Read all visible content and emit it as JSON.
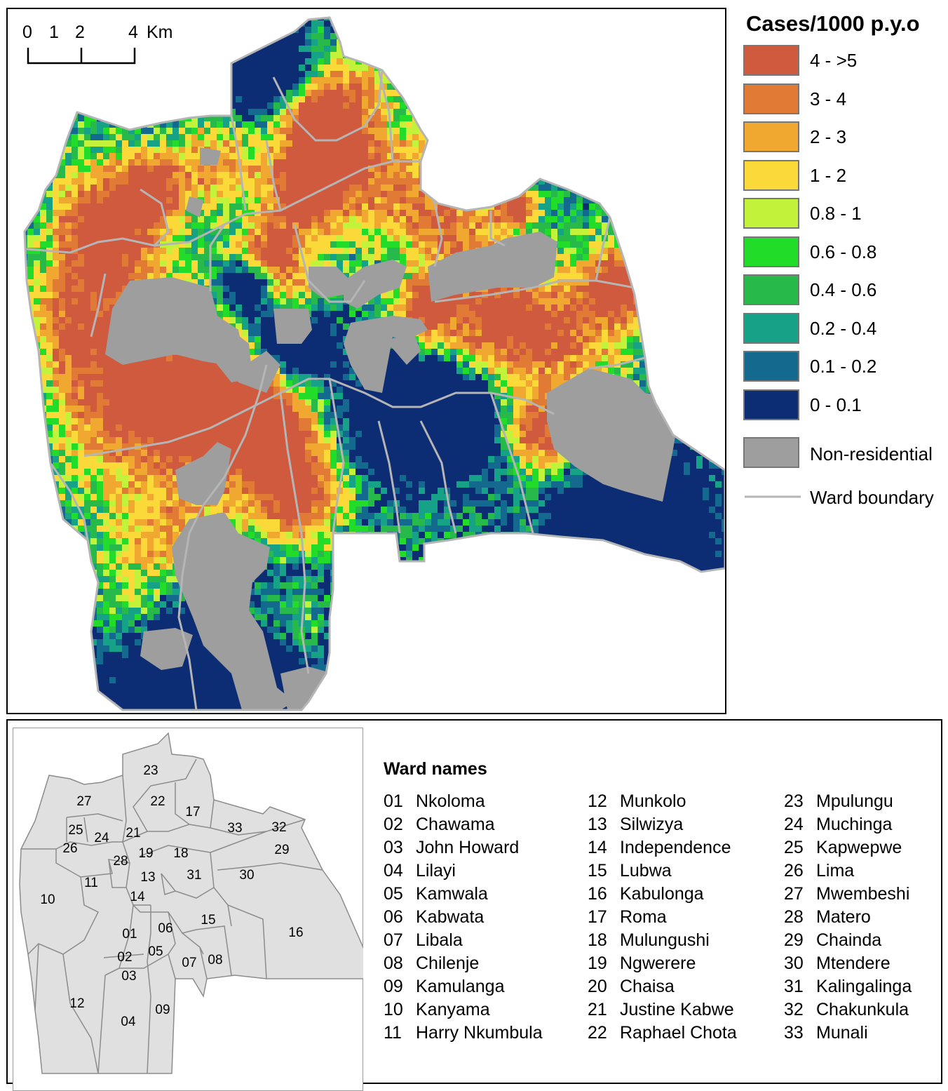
{
  "legend": {
    "title": "Cases/1000 p.y.o",
    "classes": [
      {
        "label": "4 - >5",
        "color": "#cf5a3e"
      },
      {
        "label": "3 - 4",
        "color": "#e07a34"
      },
      {
        "label": "2 - 3",
        "color": "#f0a830"
      },
      {
        "label": "1 - 2",
        "color": "#fbd938"
      },
      {
        "label": "0.8 - 1",
        "color": "#c2f23a"
      },
      {
        "label": "0.6 - 0.8",
        "color": "#22dc2a"
      },
      {
        "label": "0.4 - 0.6",
        "color": "#27b94a"
      },
      {
        "label": "0.2 - 0.4",
        "color": "#16a287"
      },
      {
        "label": "0.1 - 0.2",
        "color": "#136a8e"
      },
      {
        "label": "0 - 0.1",
        "color": "#0c2c74"
      }
    ],
    "non_residential": {
      "label": "Non-residential",
      "color": "#9e9e9e"
    },
    "ward_boundary": {
      "label": "Ward boundary",
      "color": "#b5b5b5"
    }
  },
  "scale_bar": {
    "ticks": [
      "0",
      "1",
      "2",
      "4"
    ],
    "unit": "Km"
  },
  "ward_names": {
    "title": "Ward names",
    "columns": [
      [
        {
          "num": "01",
          "name": "Nkoloma"
        },
        {
          "num": "02",
          "name": "Chawama"
        },
        {
          "num": "03",
          "name": "John Howard"
        },
        {
          "num": "04",
          "name": "Lilayi"
        },
        {
          "num": "05",
          "name": "Kamwala"
        },
        {
          "num": "06",
          "name": "Kabwata"
        },
        {
          "num": "07",
          "name": "Libala"
        },
        {
          "num": "08",
          "name": "Chilenje"
        },
        {
          "num": "09",
          "name": "Kamulanga"
        },
        {
          "num": "10",
          "name": "Kanyama"
        },
        {
          "num": "11",
          "name": "Harry Nkumbula"
        }
      ],
      [
        {
          "num": "12",
          "name": "Munkolo"
        },
        {
          "num": "13",
          "name": "Silwizya"
        },
        {
          "num": "14",
          "name": "Independence"
        },
        {
          "num": "15",
          "name": "Lubwa"
        },
        {
          "num": "16",
          "name": "Kabulonga"
        },
        {
          "num": "17",
          "name": "Roma"
        },
        {
          "num": "18",
          "name": "Mulungushi"
        },
        {
          "num": "19",
          "name": "Ngwerere"
        },
        {
          "num": "20",
          "name": "Chaisa"
        },
        {
          "num": "21",
          "name": "Justine Kabwe"
        },
        {
          "num": "22",
          "name": "Raphael Chota"
        }
      ],
      [
        {
          "num": "23",
          "name": "Mpulungu"
        },
        {
          "num": "24",
          "name": "Muchinga"
        },
        {
          "num": "25",
          "name": "Kapwepwe"
        },
        {
          "num": "26",
          "name": "Lima"
        },
        {
          "num": "27",
          "name": "Mwembeshi"
        },
        {
          "num": "28",
          "name": "Matero"
        },
        {
          "num": "29",
          "name": "Chainda"
        },
        {
          "num": "30",
          "name": "Mtendere"
        },
        {
          "num": "31",
          "name": "Kalingalinga"
        },
        {
          "num": "32",
          "name": "Chakunkula"
        },
        {
          "num": "33",
          "name": "Munali"
        }
      ]
    ]
  },
  "inset_labels": [
    "23",
    "22",
    "17",
    "27",
    "33",
    "32",
    "25",
    "24",
    "21",
    "26",
    "29",
    "28",
    "19",
    "18",
    "13",
    "31",
    "30",
    "11",
    "10",
    "14",
    "15",
    "16",
    "01",
    "06",
    "02",
    "05",
    "07",
    "08",
    "03",
    "12",
    "04",
    "09"
  ]
}
